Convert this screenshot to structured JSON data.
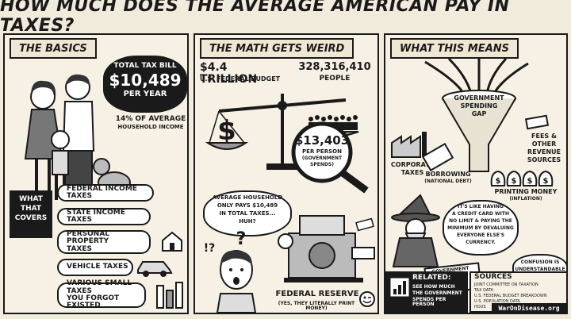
{
  "title": "HOW MUCH DOES THE AVERAGE AMERICAN PAY IN TAXES?",
  "basics": {
    "header": "THE BASICS",
    "bill_label": "TOTAL TAX BILL",
    "bill_amount": "$10,489",
    "bill_period": "PER YEAR",
    "pct_line1": "14% OF AVERAGE",
    "pct_line2": "HOUSEHOLD INCOME",
    "covers_line1": "WHAT",
    "covers_line2": "THAT",
    "covers_line3": "COVERS",
    "taxes": [
      {
        "line1": "FEDERAL INCOME TAXES",
        "line2": ""
      },
      {
        "line1": "STATE INCOME TAXES",
        "line2": ""
      },
      {
        "line1": "PERSONAL PROPERTY",
        "line2": "TAXES"
      },
      {
        "line1": "VEHICLE TAXES",
        "line2": ""
      },
      {
        "line1": "VARIOUS SMALL TAXES",
        "line2": "YOU FORGOT EXISTED"
      }
    ]
  },
  "math": {
    "header": "THE MATH GETS WEIRD",
    "budget_amount": "$4.4 TRILLION",
    "budget_label": "U.S. FEDERAL BUDGET",
    "people_count": "328,316,410",
    "people_label": "PEOPLE",
    "per_person_amount": "$13,403",
    "per_person_line1": "PER PERSON",
    "per_person_line2": "(GOVERNMENT",
    "per_person_line3": "SPENDS)",
    "thought_line1": "AVERAGE HOUSEHOLD",
    "thought_line2": "ONLY PAYS $10,489",
    "thought_line3": "IN TOTAL TAXES...",
    "thought_line4": "HUH?",
    "confused_mark": "!?",
    "question_mark": "?",
    "reserve_label": "FEDERAL RESERVE",
    "reserve_note": "(YES, THEY LITERALLY PRINT MONEY)"
  },
  "means": {
    "header": "WHAT THIS MEANS",
    "gap_line1": "GOVERNMENT",
    "gap_line2": "SPENDING",
    "gap_line3": "GAP",
    "corporate_line1": "CORPORATE",
    "corporate_line2": "TAXES",
    "fees_line1": "FEES &",
    "fees_line2": "OTHER",
    "fees_line3": "REVENUE",
    "fees_line4": "SOURCES",
    "borrowing_label": "BORROWING",
    "borrowing_note": "(NATIONAL DEBT)",
    "printing_label": "PRINTING MONEY",
    "printing_note": "(INFLATION)",
    "quote_line1": "IT'S LIKE HAVING",
    "quote_line2": "A CREDIT CARD WITH",
    "quote_line3": "NO LIMIT & PAYING THE",
    "quote_line4": "MINIMUM BY DEVALUING",
    "quote_line5": "EVERYONE ELSE'S",
    "quote_line6": "CURRENCY.",
    "card_label": "GOVERNMENT",
    "confusion_line1": "CONFUSION IS",
    "confusion_line2": "UNDERSTANDABLE",
    "related_title": "RELATED:",
    "related_line1": "SEE HOW MUCH",
    "related_line2": "THE GOVERNMENT",
    "related_line3": "SPENDS PER PERSON",
    "sources_title": "SOURCES",
    "sources": [
      "JOINT COMMITTEE ON TAXATION",
      "TAX DATA",
      "U.S. FEDERAL BUDGET BREAKDOWN",
      "U.S. POPULATION DATA",
      "HOUS"
    ],
    "watermark": "WarOnDisease.org"
  }
}
